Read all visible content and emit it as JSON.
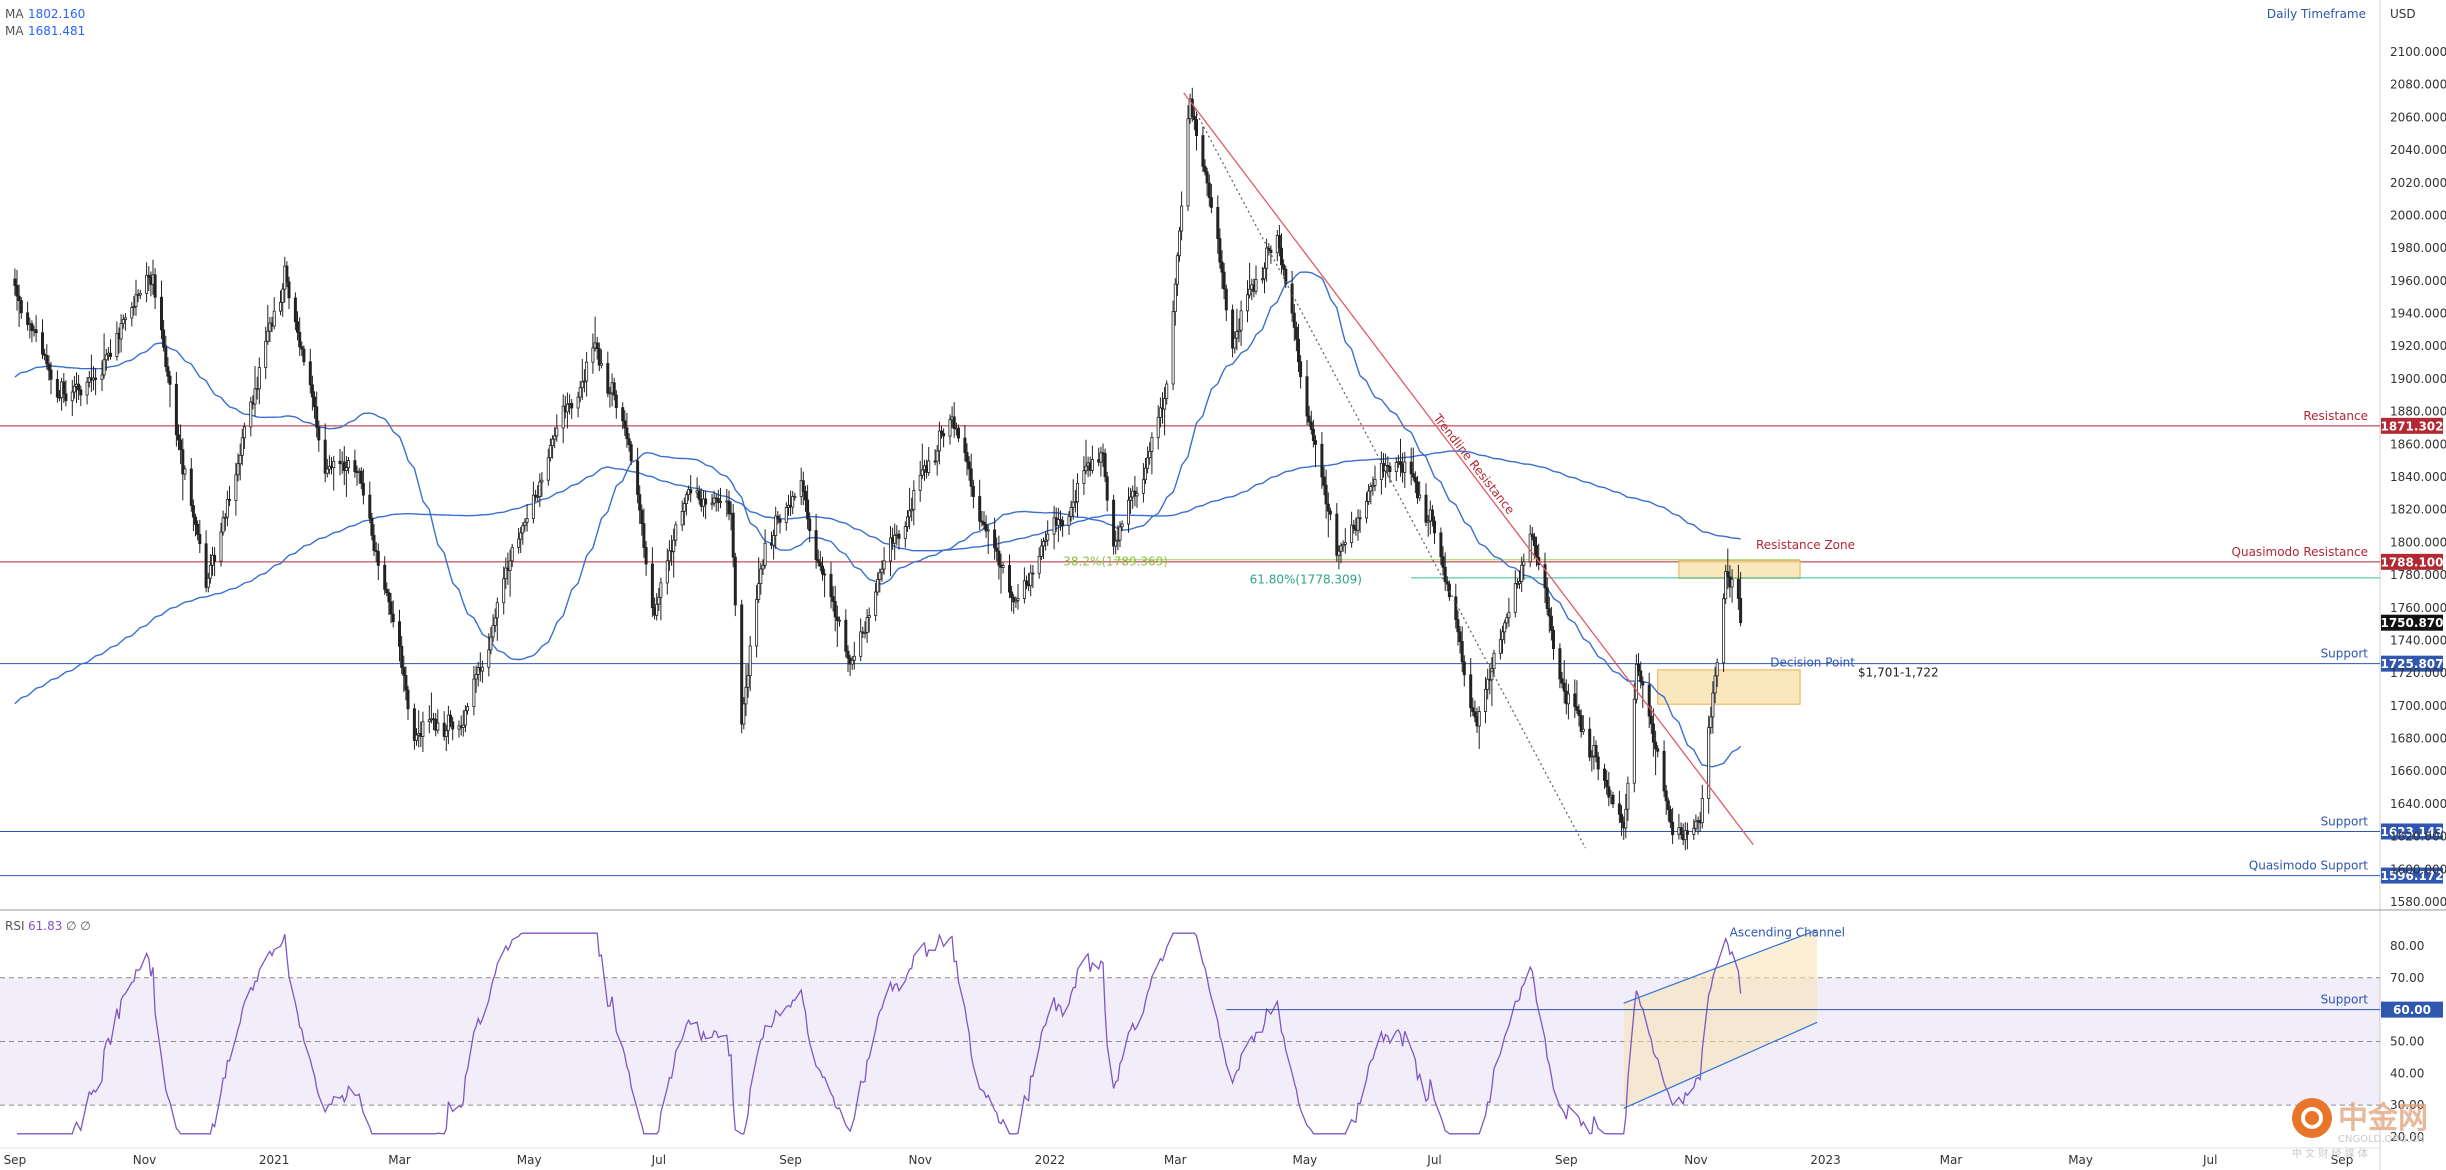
{
  "chart_data": {
    "type": "candlestick",
    "currency": "USD",
    "timeframe": "Daily Timeframe",
    "moving_averages": [
      {
        "label": "MA",
        "value": "1802.160",
        "color": "#2962ff"
      },
      {
        "label": "MA",
        "value": "1681.481",
        "color": "#2962ff"
      }
    ],
    "price_axis": {
      "min": 1580,
      "max": 2100,
      "step": 20
    },
    "price_axis_labels": [
      "2100.000",
      "2080.000",
      "2060.000",
      "2040.000",
      "2020.000",
      "2000.000",
      "1980.000",
      "1960.000",
      "1940.000",
      "1920.000",
      "1900.000",
      "1880.000",
      "1860.000",
      "1840.000",
      "1820.000",
      "1800.000",
      "1780.000",
      "1760.000",
      "1740.000",
      "1720.000",
      "1700.000",
      "1680.000",
      "1660.000",
      "1640.000",
      "1620.000",
      "1600.000",
      "1580.000"
    ],
    "time_labels": [
      "Sep",
      "Nov",
      "2021",
      "Mar",
      "May",
      "Jul",
      "Sep",
      "Nov",
      "2022",
      "Mar",
      "May",
      "Jul",
      "Sep",
      "Nov",
      "2023",
      "Mar",
      "May",
      "Jul",
      "Sep"
    ],
    "price_key_points": [
      {
        "date": "2020-09-01",
        "price": 1960
      },
      {
        "date": "2020-09-22",
        "price": 1880
      },
      {
        "date": "2020-10-15",
        "price": 1910
      },
      {
        "date": "2020-11-05",
        "price": 1955
      },
      {
        "date": "2020-11-30",
        "price": 1770
      },
      {
        "date": "2020-12-20",
        "price": 1880
      },
      {
        "date": "2021-01-06",
        "price": 1955
      },
      {
        "date": "2021-01-25",
        "price": 1850
      },
      {
        "date": "2021-02-10",
        "price": 1840
      },
      {
        "date": "2021-03-08",
        "price": 1680
      },
      {
        "date": "2021-03-30",
        "price": 1680
      },
      {
        "date": "2021-04-20",
        "price": 1780
      },
      {
        "date": "2021-05-20",
        "price": 1880
      },
      {
        "date": "2021-06-01",
        "price": 1910
      },
      {
        "date": "2021-06-16",
        "price": 1860
      },
      {
        "date": "2021-06-29",
        "price": 1760
      },
      {
        "date": "2021-07-15",
        "price": 1830
      },
      {
        "date": "2021-08-04",
        "price": 1810
      },
      {
        "date": "2021-08-09",
        "price": 1690
      },
      {
        "date": "2021-08-20",
        "price": 1790
      },
      {
        "date": "2021-09-06",
        "price": 1830
      },
      {
        "date": "2021-09-29",
        "price": 1722
      },
      {
        "date": "2021-10-21",
        "price": 1800
      },
      {
        "date": "2021-11-16",
        "price": 1870
      },
      {
        "date": "2021-12-15",
        "price": 1760
      },
      {
        "date": "2022-01-25",
        "price": 1850
      },
      {
        "date": "2022-01-31",
        "price": 1790
      },
      {
        "date": "2022-02-25",
        "price": 1890
      },
      {
        "date": "2022-03-08",
        "price": 2070
      },
      {
        "date": "2022-03-28",
        "price": 1920
      },
      {
        "date": "2022-04-18",
        "price": 1980
      },
      {
        "date": "2022-05-16",
        "price": 1790
      },
      {
        "date": "2022-06-13",
        "price": 1850
      },
      {
        "date": "2022-07-01",
        "price": 1800
      },
      {
        "date": "2022-07-21",
        "price": 1690
      },
      {
        "date": "2022-08-15",
        "price": 1800
      },
      {
        "date": "2022-09-01",
        "price": 1700
      },
      {
        "date": "2022-09-28",
        "price": 1620
      },
      {
        "date": "2022-10-04",
        "price": 1730
      },
      {
        "date": "2022-10-21",
        "price": 1620
      },
      {
        "date": "2022-11-03",
        "price": 1620
      },
      {
        "date": "2022-11-15",
        "price": 1780
      },
      {
        "date": "2022-11-22",
        "price": 1750
      }
    ],
    "horizontal_levels": [
      {
        "label": "Resistance",
        "value": 1871.302,
        "tag": "1871.302",
        "color": "#b22833"
      },
      {
        "label": "Quasimodo Resistance",
        "value": 1788.1,
        "tag": "1788.100",
        "color": "#b22833"
      },
      {
        "label": "Support",
        "value": 1725.807,
        "tag": "1725.807",
        "color": "#2f56b0"
      },
      {
        "label": "Support",
        "value": 1623.143,
        "tag": "1623.143",
        "color": "#2f56b0"
      },
      {
        "label": "Quasimodo Support",
        "value": 1596.172,
        "tag": "1596.172",
        "color": "#2f56b0"
      }
    ],
    "current_price": {
      "tag": "1750.870",
      "value": 1750.87
    },
    "annotations": {
      "resistance_zone": "Resistance Zone",
      "decision_point": "Decision Point",
      "zone_range": "$1,701-1,722",
      "fib_38": "38.2%(1789.369)",
      "fib_61": "61.80%(1778.309)",
      "trendline": "Trendline Resistance",
      "ascending_channel": "Ascending Channel"
    },
    "rsi": {
      "label": "RSI",
      "value": "61.83",
      "extra": "∅ ∅",
      "axis_labels": [
        "80.00",
        "70.00",
        "60.00",
        "50.00",
        "40.00",
        "30.00",
        "20.00"
      ],
      "axis": {
        "min": 20,
        "max": 85
      },
      "support": {
        "label": "Support",
        "tag": "60.00",
        "value": 60
      },
      "overbought": 70,
      "oversold": 30,
      "mid": 50
    }
  },
  "watermark": {
    "text": "中金网",
    "sub": "CNGOLD.ORG.CN",
    "tagline": "中 文 财 经 媒 体"
  }
}
